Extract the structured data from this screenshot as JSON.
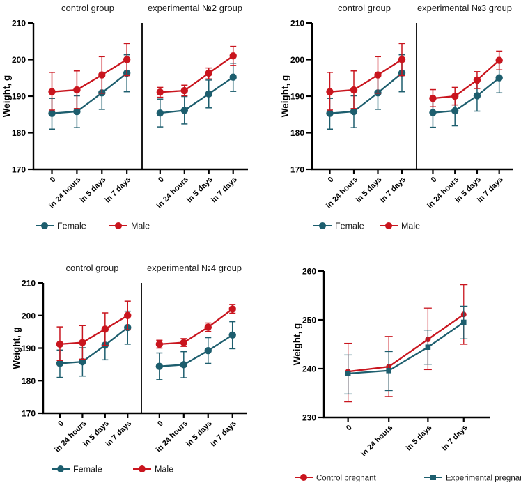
{
  "figure": {
    "background": "#ffffff",
    "series_colors": {
      "teal": "#1d5e6e",
      "red": "#c9151e"
    }
  },
  "chart_data": [
    {
      "type": "line",
      "title": "",
      "ylabel": "Weight, g",
      "ylim": [
        170,
        210
      ],
      "yticks": [
        170,
        180,
        190,
        200,
        210
      ],
      "grid": false,
      "legend_position": "bottom",
      "categories": [
        "0",
        "in 24 hours",
        "in 5 days",
        "in 7 days"
      ],
      "panels": [
        {
          "title": "control group",
          "series": [
            {
              "name": "Female",
              "color": "#1d5e6e",
              "marker": "circle",
              "values": [
                185.3,
                185.8,
                190.9,
                196.3
              ],
              "err_lo": [
                181.0,
                181.4,
                186.4,
                191.2
              ],
              "err_hi": [
                189.4,
                190.1,
                195.3,
                201.3
              ]
            },
            {
              "name": "Male",
              "color": "#c9151e",
              "marker": "circle",
              "values": [
                191.2,
                191.7,
                195.8,
                200.0
              ],
              "err_lo": [
                186.2,
                186.6,
                190.8,
                195.6
              ],
              "err_hi": [
                196.5,
                196.9,
                200.8,
                204.4
              ]
            }
          ]
        },
        {
          "title": "experimental №2 group",
          "series": [
            {
              "name": "Female",
              "color": "#1d5e6e",
              "marker": "circle",
              "values": [
                185.4,
                186.1,
                190.6,
                195.2
              ],
              "err_lo": [
                181.6,
                182.4,
                186.8,
                191.3
              ],
              "err_hi": [
                189.2,
                189.9,
                194.4,
                199.0
              ]
            },
            {
              "name": "Male",
              "color": "#c9151e",
              "marker": "circle",
              "values": [
                191.1,
                191.5,
                196.3,
                201.0
              ],
              "err_lo": [
                189.7,
                190.1,
                194.7,
                198.4
              ],
              "err_hi": [
                192.4,
                193.0,
                197.7,
                203.6
              ]
            }
          ]
        }
      ],
      "legend": [
        {
          "label": "Female",
          "color": "#1d5e6e",
          "marker": "circle"
        },
        {
          "label": "Male",
          "color": "#c9151e",
          "marker": "circle"
        }
      ]
    },
    {
      "type": "line",
      "title": "",
      "ylabel": "Weight, g",
      "ylim": [
        170,
        210
      ],
      "yticks": [
        170,
        180,
        190,
        200,
        210
      ],
      "grid": false,
      "legend_position": "bottom",
      "categories": [
        "0",
        "in 24 hours",
        "in 5 days",
        "in 7 days"
      ],
      "panels": [
        {
          "title": "control group",
          "series": [
            {
              "name": "Female",
              "color": "#1d5e6e",
              "marker": "circle",
              "values": [
                185.3,
                185.8,
                190.9,
                196.3
              ],
              "err_lo": [
                181.0,
                181.4,
                186.4,
                191.2
              ],
              "err_hi": [
                189.4,
                190.1,
                195.3,
                201.3
              ]
            },
            {
              "name": "Male",
              "color": "#c9151e",
              "marker": "circle",
              "values": [
                191.2,
                191.7,
                195.8,
                200.0
              ],
              "err_lo": [
                186.2,
                186.6,
                190.8,
                195.6
              ],
              "err_hi": [
                196.5,
                196.9,
                200.8,
                204.4
              ]
            }
          ]
        },
        {
          "title": "experimental №3 group",
          "series": [
            {
              "name": "Female",
              "color": "#1d5e6e",
              "marker": "circle",
              "values": [
                185.5,
                186.0,
                190.1,
                195.0
              ],
              "err_lo": [
                181.5,
                181.9,
                185.9,
                190.9
              ],
              "err_hi": [
                189.5,
                190.2,
                194.4,
                199.1
              ]
            },
            {
              "name": "Male",
              "color": "#c9151e",
              "marker": "circle",
              "values": [
                189.4,
                190.0,
                194.4,
                199.8
              ],
              "err_lo": [
                187.1,
                187.6,
                192.1,
                197.2
              ],
              "err_hi": [
                191.8,
                192.4,
                196.7,
                202.3
              ]
            }
          ]
        }
      ],
      "legend": [
        {
          "label": "Female",
          "color": "#1d5e6e",
          "marker": "circle"
        },
        {
          "label": "Male",
          "color": "#c9151e",
          "marker": "circle"
        }
      ]
    },
    {
      "type": "line",
      "title": "",
      "ylabel": "Weight, g",
      "ylim": [
        170,
        210
      ],
      "yticks": [
        170,
        180,
        190,
        200,
        210
      ],
      "grid": false,
      "legend_position": "bottom",
      "categories": [
        "0",
        "in 24 hours",
        "in 5 days",
        "in 7 days"
      ],
      "panels": [
        {
          "title": "control group",
          "series": [
            {
              "name": "Female",
              "color": "#1d5e6e",
              "marker": "circle",
              "values": [
                185.3,
                185.8,
                190.9,
                196.3
              ],
              "err_lo": [
                181.0,
                181.4,
                186.4,
                191.2
              ],
              "err_hi": [
                189.4,
                190.1,
                195.3,
                201.3
              ]
            },
            {
              "name": "Male",
              "color": "#c9151e",
              "marker": "circle",
              "values": [
                191.2,
                191.7,
                195.8,
                200.0
              ],
              "err_lo": [
                186.2,
                186.6,
                190.8,
                195.6
              ],
              "err_hi": [
                196.5,
                196.9,
                200.8,
                204.4
              ]
            }
          ]
        },
        {
          "title": "experimental №4 group",
          "series": [
            {
              "name": "Female",
              "color": "#1d5e6e",
              "marker": "circle",
              "values": [
                184.4,
                184.9,
                189.2,
                194.0
              ],
              "err_lo": [
                180.3,
                180.9,
                185.3,
                189.8
              ],
              "err_hi": [
                188.5,
                188.9,
                193.2,
                198.1
              ]
            },
            {
              "name": "Male",
              "color": "#c9151e",
              "marker": "circle",
              "values": [
                191.2,
                191.7,
                196.4,
                202.0
              ],
              "err_lo": [
                190.0,
                190.5,
                195.1,
                200.7
              ],
              "err_hi": [
                192.4,
                192.9,
                197.7,
                203.4
              ]
            }
          ]
        }
      ],
      "legend": [
        {
          "label": "Female",
          "color": "#1d5e6e",
          "marker": "circle"
        },
        {
          "label": "Male",
          "color": "#c9151e",
          "marker": "circle"
        }
      ]
    },
    {
      "type": "line",
      "title": "",
      "ylabel": "Weight, g",
      "ylim": [
        230,
        260
      ],
      "yticks": [
        230,
        240,
        250,
        260
      ],
      "grid": false,
      "legend_position": "bottom",
      "categories": [
        "0",
        "in 24 hours",
        "in 5 days",
        "in 7 days"
      ],
      "panels": [
        {
          "title": "",
          "series": [
            {
              "name": "Control pregnant",
              "color": "#c9151e",
              "marker": "circle",
              "values": [
                239.4,
                240.4,
                246.0,
                251.1
              ],
              "err_lo": [
                233.2,
                234.3,
                239.8,
                245.0
              ],
              "err_hi": [
                245.2,
                246.6,
                252.4,
                257.2
              ]
            },
            {
              "name": "Experimental pregnant",
              "color": "#1d5e6e",
              "marker": "square",
              "values": [
                239.0,
                239.6,
                244.4,
                249.5
              ],
              "err_lo": [
                234.8,
                235.5,
                240.9,
                246.1
              ],
              "err_hi": [
                242.8,
                243.5,
                247.9,
                252.8
              ]
            }
          ]
        }
      ],
      "legend": [
        {
          "label": "Control pregnant",
          "color": "#c9151e",
          "marker": "circle"
        },
        {
          "label": "Experimental pregnant",
          "color": "#1d5e6e",
          "marker": "square"
        }
      ]
    }
  ]
}
